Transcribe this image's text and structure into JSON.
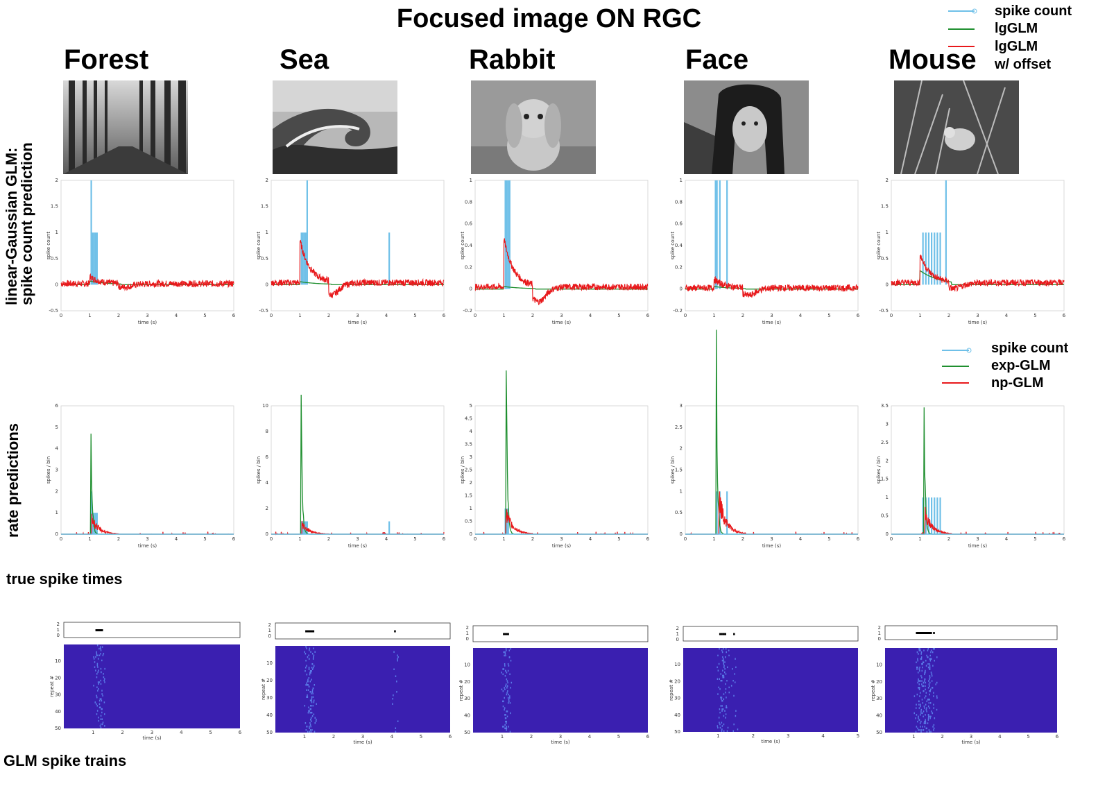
{
  "figure": {
    "title": "Focused image ON RGC",
    "columns": [
      "Forest",
      "Sea",
      "Rabbit",
      "Face",
      "Mouse"
    ],
    "row_labels": {
      "row1_line1": "linear-Gaussian GLM:",
      "row1_line2": "spike count prediction",
      "row2": "rate predictions",
      "row3": "true spike times",
      "row4": "GLM spike trains"
    },
    "legend_top": [
      "spike count",
      "lgGLM",
      "lgGLM",
      "w/ offset"
    ],
    "legend_mid": [
      "spike count",
      "exp-GLM",
      "np-GLM"
    ],
    "colors": {
      "spike": "#6fc0e8",
      "green": "#1f8f2f",
      "red": "#e8181b",
      "raster": "#3a1fb0"
    },
    "photos": [
      "forest",
      "sea-wave",
      "rabbit",
      "face",
      "mouse"
    ]
  },
  "chart_data": [
    {
      "type": "line",
      "panel": "Forest spike count",
      "xlabel": "time (s)",
      "ylabel": "spike count",
      "xlim": [
        0,
        6
      ],
      "ylim": [
        -0.5,
        2
      ],
      "xticks": [
        "0",
        "1",
        "2",
        "3",
        "4",
        "5",
        "6"
      ],
      "yticks": [
        "-0.5",
        "0",
        "0.5",
        "1",
        "1.5",
        "2"
      ],
      "spikes": [
        [
          1.05,
          2
        ],
        [
          1.1,
          1
        ],
        [
          1.15,
          1
        ],
        [
          1.2,
          1
        ],
        [
          1.25,
          1
        ]
      ],
      "series": [
        {
          "name": "lgGLM",
          "peak": [
            1.1,
            0.06
          ]
        },
        {
          "name": "lgGLM w/ offset",
          "peak": [
            1.1,
            0.1
          ],
          "dip": [
            2.2,
            -0.05
          ]
        }
      ]
    },
    {
      "type": "line",
      "panel": "Sea spike count",
      "xlabel": "time (s)",
      "ylabel": "spike count",
      "xlim": [
        0,
        6
      ],
      "ylim": [
        -0.5,
        2
      ],
      "xticks": [
        "0",
        "1",
        "2",
        "3",
        "4",
        "5",
        "6"
      ],
      "yticks": [
        "-0.5",
        "0",
        "0.5",
        "1",
        "1.5",
        "2"
      ],
      "spikes": [
        [
          1.05,
          1
        ],
        [
          1.1,
          1
        ],
        [
          1.15,
          1
        ],
        [
          1.2,
          1
        ],
        [
          1.25,
          2
        ],
        [
          4.1,
          1
        ]
      ],
      "series": [
        {
          "name": "lgGLM",
          "peak": [
            1.1,
            0.05
          ]
        },
        {
          "name": "lgGLM w/ offset",
          "peak": [
            1.1,
            0.6
          ],
          "dip": [
            2.1,
            -0.2
          ]
        }
      ]
    },
    {
      "type": "line",
      "panel": "Rabbit spike count",
      "xlabel": "time (s)",
      "ylabel": "spike count",
      "xlim": [
        0,
        6
      ],
      "ylim": [
        -0.2,
        1
      ],
      "xticks": [
        "0",
        "1",
        "2",
        "3",
        "4",
        "5",
        "6"
      ],
      "yticks": [
        "-0.2",
        "0",
        "0.2",
        "0.4",
        "0.6",
        "0.8",
        "1"
      ],
      "spikes": [
        [
          1.05,
          1
        ],
        [
          1.1,
          1
        ],
        [
          1.15,
          1
        ],
        [
          1.2,
          1
        ]
      ],
      "series": [
        {
          "name": "lgGLM",
          "peak": [
            1.1,
            0.02
          ]
        },
        {
          "name": "lgGLM w/ offset",
          "peak": [
            1.1,
            0.33
          ],
          "dip": [
            2.2,
            -0.12
          ]
        }
      ]
    },
    {
      "type": "line",
      "panel": "Face spike count",
      "xlabel": "time (s)",
      "ylabel": "spike count",
      "xlim": [
        0,
        6
      ],
      "ylim": [
        -0.2,
        1
      ],
      "xticks": [
        "0",
        "1",
        "2",
        "3",
        "4",
        "5",
        "6"
      ],
      "yticks": [
        "-0.2",
        "0",
        "0.2",
        "0.4",
        "0.6",
        "0.8",
        "1"
      ],
      "spikes": [
        [
          1.05,
          1
        ],
        [
          1.1,
          1
        ],
        [
          1.2,
          1
        ],
        [
          1.45,
          1
        ]
      ],
      "series": [
        {
          "name": "lgGLM",
          "peak": [
            1.1,
            0.02
          ]
        },
        {
          "name": "lgGLM w/ offset",
          "peak": [
            1.1,
            0.06
          ],
          "dip": [
            2.2,
            -0.06
          ]
        }
      ]
    },
    {
      "type": "line",
      "panel": "Mouse spike count",
      "xlabel": "time (s)",
      "ylabel": "spike count",
      "xlim": [
        0,
        6
      ],
      "ylim": [
        -0.5,
        2
      ],
      "xticks": [
        "0",
        "1",
        "2",
        "3",
        "4",
        "5",
        "6"
      ],
      "yticks": [
        "-0.5",
        "0",
        "0.5",
        "1",
        "1.5",
        "2"
      ],
      "spikes": [
        [
          1.1,
          1
        ],
        [
          1.2,
          1
        ],
        [
          1.3,
          1
        ],
        [
          1.4,
          1
        ],
        [
          1.5,
          1
        ],
        [
          1.6,
          1
        ],
        [
          1.7,
          1
        ],
        [
          1.9,
          2
        ]
      ],
      "series": [
        {
          "name": "lgGLM",
          "peak": [
            1.2,
            0.2
          ]
        },
        {
          "name": "lgGLM w/ offset",
          "peak": [
            1.2,
            0.3
          ],
          "dip": [
            2.2,
            -0.08
          ]
        }
      ]
    },
    {
      "type": "line",
      "panel": "Forest rate",
      "xlabel": "time (s)",
      "ylabel": "spikes / bin",
      "xlim": [
        0,
        6
      ],
      "ylim": [
        0,
        6
      ],
      "xticks": [
        "0",
        "1",
        "2",
        "3",
        "4",
        "5",
        "6"
      ],
      "yticks": [
        "0",
        "1",
        "2",
        "3",
        "4",
        "5",
        "6"
      ],
      "spikes": [
        [
          1.05,
          2
        ],
        [
          1.1,
          1
        ],
        [
          1.15,
          1
        ],
        [
          1.2,
          1
        ],
        [
          1.25,
          1
        ]
      ],
      "series": [
        {
          "name": "exp-GLM",
          "peak": [
            1.05,
            5.1
          ]
        },
        {
          "name": "np-GLM",
          "peak": [
            1.1,
            0.9
          ]
        }
      ]
    },
    {
      "type": "line",
      "panel": "Sea rate",
      "xlabel": "time (s)",
      "ylabel": "spikes / bin",
      "xlim": [
        0,
        6
      ],
      "ylim": [
        0,
        10
      ],
      "xticks": [
        "0",
        "1",
        "2",
        "3",
        "4",
        "5",
        "6"
      ],
      "yticks": [
        "0",
        "2",
        "4",
        "6",
        "8",
        "10"
      ],
      "spikes": [
        [
          1.05,
          1
        ],
        [
          1.1,
          1
        ],
        [
          1.15,
          1
        ],
        [
          1.2,
          1
        ],
        [
          1.25,
          1
        ],
        [
          4.1,
          1
        ]
      ],
      "series": [
        {
          "name": "exp-GLM",
          "peak": [
            1.05,
            8.9
          ]
        },
        {
          "name": "np-GLM",
          "peak": [
            1.1,
            1.0
          ]
        }
      ]
    },
    {
      "type": "line",
      "panel": "Rabbit rate",
      "xlabel": "time (s)",
      "ylabel": "spikes / bin",
      "xlim": [
        0,
        6
      ],
      "ylim": [
        0,
        5
      ],
      "xticks": [
        "0",
        "1",
        "2",
        "3",
        "4",
        "5",
        "6"
      ],
      "yticks": [
        "0",
        "0.5",
        "1",
        "1.5",
        "2",
        "2.5",
        "3",
        "3.5",
        "4",
        "4.5",
        "5"
      ],
      "spikes": [
        [
          1.05,
          1
        ],
        [
          1.1,
          1
        ],
        [
          1.15,
          1
        ]
      ],
      "series": [
        {
          "name": "exp-GLM",
          "peak": [
            1.1,
            4.9
          ]
        },
        {
          "name": "np-GLM",
          "peak": [
            1.1,
            1.0
          ]
        }
      ]
    },
    {
      "type": "line",
      "panel": "Face rate",
      "xlabel": "time (s)",
      "ylabel": "spikes / bin",
      "xlim": [
        0,
        6
      ],
      "ylim": [
        0,
        3
      ],
      "xticks": [
        "0",
        "1",
        "2",
        "3",
        "4",
        "5",
        "6"
      ],
      "yticks": [
        "0",
        "0.5",
        "1",
        "1.5",
        "2",
        "2.5",
        "3"
      ],
      "spikes": [
        [
          1.1,
          1
        ],
        [
          1.2,
          1
        ],
        [
          1.45,
          1
        ]
      ],
      "series": [
        {
          "name": "exp-GLM",
          "peak": [
            1.1,
            2.9
          ]
        },
        {
          "name": "np-GLM",
          "peak": [
            1.2,
            1.0
          ]
        }
      ]
    },
    {
      "type": "line",
      "panel": "Mouse rate",
      "xlabel": "time (s)",
      "ylabel": "spikes / bin",
      "xlim": [
        0,
        6
      ],
      "ylim": [
        0,
        3.5
      ],
      "xticks": [
        "0",
        "1",
        "2",
        "3",
        "4",
        "5",
        "6"
      ],
      "yticks": [
        "0",
        "0.5",
        "1",
        "1.5",
        "2",
        "2.5",
        "3",
        "3.5"
      ],
      "spikes": [
        [
          1.1,
          1
        ],
        [
          1.2,
          1
        ],
        [
          1.3,
          1
        ],
        [
          1.4,
          1
        ],
        [
          1.5,
          1
        ],
        [
          1.6,
          1
        ],
        [
          1.7,
          1
        ]
      ],
      "series": [
        {
          "name": "exp-GLM",
          "peak": [
            1.15,
            3.1
          ]
        },
        {
          "name": "np-GLM",
          "peak": [
            1.2,
            0.7
          ]
        }
      ]
    },
    {
      "type": "heatmap",
      "panel": "Forest raster",
      "xlabel": "time (s)",
      "ylabel": "repeat #",
      "xlim": [
        0,
        6
      ],
      "ylim": [
        0,
        50
      ],
      "xticks": [
        "1",
        "2",
        "3",
        "4",
        "5",
        "6"
      ],
      "yticks": [
        "10",
        "20",
        "30",
        "40",
        "50"
      ],
      "true_spike_times": [
        1.1,
        1.15,
        1.2,
        1.25,
        1.3
      ]
    },
    {
      "type": "heatmap",
      "panel": "Sea raster",
      "xlabel": "time (s)",
      "ylabel": "repeat #",
      "xlim": [
        0,
        6
      ],
      "ylim": [
        0,
        50
      ],
      "xticks": [
        "1",
        "2",
        "3",
        "4",
        "5",
        "6"
      ],
      "yticks": [
        "10",
        "20",
        "30",
        "40",
        "50"
      ],
      "true_spike_times": [
        1.05,
        1.1,
        1.15,
        1.2,
        1.25,
        1.3,
        4.1
      ]
    },
    {
      "type": "heatmap",
      "panel": "Rabbit raster",
      "xlabel": "time (s)",
      "ylabel": "repeat #",
      "xlim": [
        0,
        6
      ],
      "ylim": [
        0,
        50
      ],
      "xticks": [
        "1",
        "2",
        "3",
        "4",
        "5",
        "6"
      ],
      "yticks": [
        "10",
        "20",
        "30",
        "40",
        "50"
      ],
      "true_spike_times": [
        1.05,
        1.1,
        1.15,
        1.2
      ]
    },
    {
      "type": "heatmap",
      "panel": "Face raster",
      "xlabel": "time (s)",
      "ylabel": "repeat #",
      "xlim": [
        0,
        5
      ],
      "ylim": [
        0,
        50
      ],
      "xticks": [
        "1",
        "2",
        "3",
        "4",
        "5"
      ],
      "yticks": [
        "10",
        "20",
        "30",
        "40",
        "50"
      ],
      "true_spike_times": [
        1.05,
        1.1,
        1.15,
        1.2,
        1.45
      ]
    },
    {
      "type": "heatmap",
      "panel": "Mouse raster",
      "xlabel": "time (s)",
      "ylabel": "repeat #",
      "xlim": [
        0,
        6
      ],
      "ylim": [
        0,
        50
      ],
      "xticks": [
        "1",
        "2",
        "3",
        "4",
        "5",
        "6"
      ],
      "yticks": [
        "10",
        "20",
        "30",
        "40",
        "50"
      ],
      "true_spike_times": [
        1.1,
        1.15,
        1.2,
        1.25,
        1.3,
        1.35,
        1.4,
        1.45,
        1.5,
        1.55,
        1.6,
        1.7
      ]
    }
  ]
}
